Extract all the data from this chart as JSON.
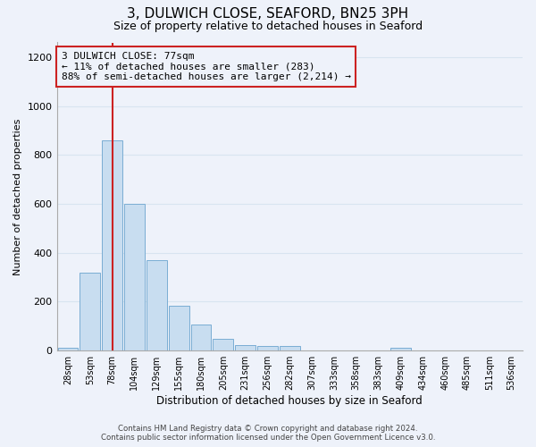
{
  "title": "3, DULWICH CLOSE, SEAFORD, BN25 3PH",
  "subtitle": "Size of property relative to detached houses in Seaford",
  "xlabel": "Distribution of detached houses by size in Seaford",
  "ylabel": "Number of detached properties",
  "bar_labels": [
    "28sqm",
    "53sqm",
    "78sqm",
    "104sqm",
    "129sqm",
    "155sqm",
    "180sqm",
    "205sqm",
    "231sqm",
    "256sqm",
    "282sqm",
    "307sqm",
    "333sqm",
    "358sqm",
    "383sqm",
    "409sqm",
    "434sqm",
    "460sqm",
    "485sqm",
    "511sqm",
    "536sqm"
  ],
  "bar_values": [
    10,
    320,
    860,
    600,
    370,
    185,
    105,
    47,
    22,
    18,
    20,
    0,
    0,
    0,
    0,
    10,
    0,
    0,
    0,
    0,
    0
  ],
  "bar_color": "#c8ddf0",
  "bar_edge_color": "#7aadd4",
  "property_line_x": 2,
  "property_line_label": "3 DULWICH CLOSE: 77sqm",
  "annotation_line1": "← 11% of detached houses are smaller (283)",
  "annotation_line2": "88% of semi-detached houses are larger (2,214) →",
  "annotation_box_color": "#cc2222",
  "ylim": [
    0,
    1260
  ],
  "yticks": [
    0,
    200,
    400,
    600,
    800,
    1000,
    1200
  ],
  "footer_line1": "Contains HM Land Registry data © Crown copyright and database right 2024.",
  "footer_line2": "Contains public sector information licensed under the Open Government Licence v3.0.",
  "bg_color": "#eef2fa",
  "grid_color": "#d8e4f0"
}
